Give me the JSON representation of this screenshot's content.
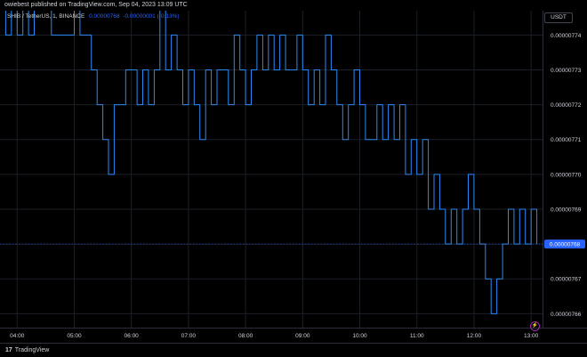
{
  "header": {
    "publisher_line": "owiebest published on TradingView.com, Sep 04, 2023 13:09 UTC"
  },
  "legend": {
    "symbol_line": "SHIB / TetherUS, 1, BINANCE",
    "value": "0.00000768",
    "change": "-0.00000001 (-0.13%)"
  },
  "price_scale": {
    "unit": "USDT",
    "current_price_label": "0.00000768"
  },
  "footer": {
    "brand": "TradingView",
    "logo_glyph": "17"
  },
  "colors": {
    "background": "#000000",
    "line": "#2a8af6",
    "grid": "#1b1f27",
    "price_badge": "#2962ff",
    "text": "#d1d4dc"
  },
  "chart_data": {
    "type": "line",
    "title": "SHIB / TetherUS, 1, BINANCE",
    "xlabel": "",
    "ylabel": "",
    "x_ticks": [
      "04:00",
      "05:00",
      "06:00",
      "07:00",
      "08:00",
      "09:00",
      "10:00",
      "11:00",
      "12:00",
      "13:00"
    ],
    "y_ticks": [
      "0.00000766",
      "0.00000767",
      "0.00000768",
      "0.00000769",
      "0.00000770",
      "0.00000771",
      "0.00000772",
      "0.00000773",
      "0.00000774"
    ],
    "ylim": [
      7.656e-06,
      7.747e-06
    ],
    "xlim": [
      "03:42",
      "13:12"
    ],
    "grid": true,
    "current_price": 7.68e-06,
    "series": [
      {
        "x": [
          "03:42",
          "03:48",
          "03:54",
          "04:00",
          "04:06",
          "04:12",
          "04:18",
          "04:24",
          "04:30",
          "04:36",
          "04:42",
          "04:48",
          "04:54",
          "05:00",
          "05:06",
          "05:12",
          "05:18",
          "05:24",
          "05:30",
          "05:36",
          "05:42",
          "05:48",
          "05:54",
          "06:00",
          "06:06",
          "06:12",
          "06:18",
          "06:24",
          "06:30",
          "06:36",
          "06:42",
          "06:48",
          "06:54",
          "07:00",
          "07:06",
          "07:12",
          "07:18",
          "07:24",
          "07:30",
          "07:36",
          "07:42",
          "07:48",
          "07:54",
          "08:00",
          "08:06",
          "08:12",
          "08:18",
          "08:24",
          "08:30",
          "08:36",
          "08:42",
          "08:48",
          "08:54",
          "09:00",
          "09:06",
          "09:12",
          "09:18",
          "09:24",
          "09:30",
          "09:36",
          "09:42",
          "09:48",
          "09:54",
          "10:00",
          "10:06",
          "10:12",
          "10:18",
          "10:24",
          "10:30",
          "10:36",
          "10:42",
          "10:48",
          "10:54",
          "11:00",
          "11:06",
          "11:12",
          "11:18",
          "11:24",
          "11:30",
          "11:36",
          "11:42",
          "11:48",
          "11:54",
          "12:00",
          "12:06",
          "12:12",
          "12:18",
          "12:24",
          "12:30",
          "12:36",
          "12:42",
          "12:48",
          "12:54",
          "13:00",
          "13:06"
        ],
        "values": [
          7.75e-06,
          7.74e-06,
          7.75e-06,
          7.74e-06,
          7.75e-06,
          7.74e-06,
          7.75e-06,
          7.75e-06,
          7.75e-06,
          7.74e-06,
          7.74e-06,
          7.74e-06,
          7.74e-06,
          7.75e-06,
          7.74e-06,
          7.74e-06,
          7.73e-06,
          7.72e-06,
          7.71e-06,
          7.7e-06,
          7.72e-06,
          7.72e-06,
          7.73e-06,
          7.73e-06,
          7.72e-06,
          7.73e-06,
          7.72e-06,
          7.73e-06,
          7.75e-06,
          7.73e-06,
          7.74e-06,
          7.73e-06,
          7.72e-06,
          7.73e-06,
          7.72e-06,
          7.71e-06,
          7.73e-06,
          7.72e-06,
          7.73e-06,
          7.73e-06,
          7.72e-06,
          7.74e-06,
          7.73e-06,
          7.72e-06,
          7.73e-06,
          7.74e-06,
          7.73e-06,
          7.74e-06,
          7.73e-06,
          7.74e-06,
          7.73e-06,
          7.73e-06,
          7.74e-06,
          7.73e-06,
          7.72e-06,
          7.73e-06,
          7.72e-06,
          7.74e-06,
          7.73e-06,
          7.72e-06,
          7.71e-06,
          7.72e-06,
          7.73e-06,
          7.72e-06,
          7.71e-06,
          7.71e-06,
          7.72e-06,
          7.71e-06,
          7.72e-06,
          7.71e-06,
          7.72e-06,
          7.7e-06,
          7.71e-06,
          7.7e-06,
          7.71e-06,
          7.69e-06,
          7.7e-06,
          7.69e-06,
          7.68e-06,
          7.69e-06,
          7.68e-06,
          7.69e-06,
          7.7e-06,
          7.69e-06,
          7.68e-06,
          7.67e-06,
          7.66e-06,
          7.67e-06,
          7.68e-06,
          7.69e-06,
          7.68e-06,
          7.69e-06,
          7.68e-06,
          7.69e-06,
          7.68e-06
        ]
      }
    ]
  }
}
